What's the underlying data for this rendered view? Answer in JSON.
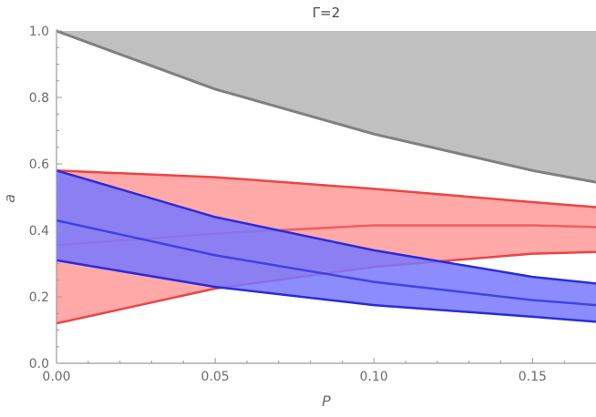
{
  "chart_data": {
    "type": "area",
    "title": "Γ=2",
    "xlabel": "P",
    "ylabel": "a",
    "xlim": [
      0,
      0.17
    ],
    "ylim": [
      0,
      1.0
    ],
    "x_ticks": [
      0,
      0.05,
      0.1,
      0.15
    ],
    "x_tick_labels": [
      "0.00",
      "0.05",
      "0.10",
      "0.15"
    ],
    "y_ticks": [
      0,
      0.2,
      0.4,
      0.6,
      0.8,
      1.0
    ],
    "y_tick_labels": [
      "0.0",
      "0.2",
      "0.4",
      "0.6",
      "0.8",
      "1.0"
    ],
    "grid": false,
    "colors": {
      "gray_fill": "#c0c0c0",
      "gray_line": "#808080",
      "red_fill": "#ff9a9a",
      "red_line": "#ee4444",
      "blue_fill": "#7878ff",
      "blue_line": "#2b2bdd",
      "axis": "#9a9a9a"
    },
    "series": [
      {
        "region": "gray",
        "boundary": [
          [
            0,
            1.0
          ],
          [
            0.05,
            0.825
          ],
          [
            0.1,
            0.69
          ],
          [
            0.15,
            0.58
          ],
          [
            0.17,
            0.545
          ]
        ],
        "fill_to": 1.0
      },
      {
        "region": "red",
        "upper": [
          [
            0,
            0.58
          ],
          [
            0.05,
            0.56
          ],
          [
            0.1,
            0.525
          ],
          [
            0.15,
            0.485
          ],
          [
            0.17,
            0.47
          ]
        ],
        "middle": [
          [
            0,
            0.355
          ],
          [
            0.05,
            0.39
          ],
          [
            0.1,
            0.415
          ],
          [
            0.15,
            0.415
          ],
          [
            0.17,
            0.41
          ]
        ],
        "lower": [
          [
            0,
            0.12
          ],
          [
            0.05,
            0.225
          ],
          [
            0.1,
            0.29
          ],
          [
            0.15,
            0.33
          ],
          [
            0.17,
            0.335
          ]
        ]
      },
      {
        "region": "blue",
        "upper": [
          [
            0,
            0.58
          ],
          [
            0.05,
            0.44
          ],
          [
            0.1,
            0.34
          ],
          [
            0.15,
            0.26
          ],
          [
            0.17,
            0.24
          ]
        ],
        "middle": [
          [
            0,
            0.43
          ],
          [
            0.05,
            0.325
          ],
          [
            0.1,
            0.245
          ],
          [
            0.15,
            0.19
          ],
          [
            0.17,
            0.175
          ]
        ],
        "lower": [
          [
            0,
            0.31
          ],
          [
            0.05,
            0.23
          ],
          [
            0.1,
            0.175
          ],
          [
            0.15,
            0.14
          ],
          [
            0.17,
            0.125
          ]
        ]
      }
    ]
  }
}
